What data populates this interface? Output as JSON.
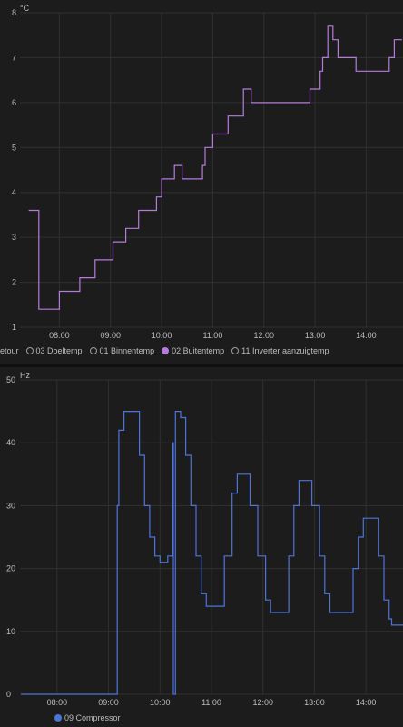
{
  "chart_data": [
    {
      "type": "line",
      "unit": "°C",
      "ylim": [
        1,
        8
      ],
      "y_ticks": [
        "1",
        "2",
        "3",
        "4",
        "5",
        "6",
        "7",
        "8"
      ],
      "x_tick_labels": [
        "08:00",
        "09:00",
        "10:00",
        "11:00",
        "12:00",
        "13:00",
        "14:00"
      ],
      "xlim_hours": [
        7.23,
        14.72
      ],
      "grid": true,
      "legend_position": "bottom-left",
      "legend": [
        {
          "label": "etour",
          "active": false
        },
        {
          "label": "03 Doeltemp",
          "active": false
        },
        {
          "label": "01 Binnentemp",
          "active": false
        },
        {
          "label": "02 Buitentemp",
          "active": true,
          "color": "#b57bdc"
        },
        {
          "label": "11 Inverter aanzuigtemp",
          "active": false
        }
      ],
      "series": [
        {
          "name": "02 Buitentemp",
          "color": "#b57bdc",
          "points": [
            [
              7.4,
              3.6
            ],
            [
              7.6,
              3.6
            ],
            [
              7.6,
              1.4
            ],
            [
              7.9,
              1.4
            ],
            [
              8.0,
              1.8
            ],
            [
              8.35,
              1.8
            ],
            [
              8.4,
              2.1
            ],
            [
              8.6,
              2.1
            ],
            [
              8.7,
              2.5
            ],
            [
              8.95,
              2.5
            ],
            [
              9.05,
              2.9
            ],
            [
              9.2,
              2.9
            ],
            [
              9.3,
              3.2
            ],
            [
              9.45,
              3.2
            ],
            [
              9.55,
              3.6
            ],
            [
              9.7,
              3.6
            ],
            [
              9.75,
              3.6
            ],
            [
              9.9,
              3.9
            ],
            [
              10.0,
              4.3
            ],
            [
              10.15,
              4.3
            ],
            [
              10.25,
              4.6
            ],
            [
              10.4,
              4.3
            ],
            [
              10.8,
              4.6
            ],
            [
              10.85,
              5.0
            ],
            [
              11.0,
              5.3
            ],
            [
              11.2,
              5.3
            ],
            [
              11.3,
              5.7
            ],
            [
              11.55,
              5.7
            ],
            [
              11.6,
              6.3
            ],
            [
              11.75,
              6.0
            ],
            [
              12.35,
              6.0
            ],
            [
              12.45,
              6.0
            ],
            [
              12.8,
              6.0
            ],
            [
              12.9,
              6.3
            ],
            [
              13.1,
              6.7
            ],
            [
              13.15,
              7.0
            ],
            [
              13.25,
              7.7
            ],
            [
              13.35,
              7.4
            ],
            [
              13.45,
              7.0
            ],
            [
              13.7,
              7.0
            ],
            [
              13.8,
              6.7
            ],
            [
              14.3,
              6.7
            ],
            [
              14.45,
              7.0
            ],
            [
              14.55,
              7.4
            ],
            [
              14.7,
              7.4
            ]
          ]
        }
      ]
    },
    {
      "type": "line",
      "unit": "Hz",
      "ylim": [
        0,
        50
      ],
      "y_ticks": [
        "0",
        "10",
        "20",
        "30",
        "40",
        "50"
      ],
      "x_tick_labels": [
        "08:00",
        "09:00",
        "10:00",
        "11:00",
        "12:00",
        "13:00",
        "14:00"
      ],
      "xlim_hours": [
        7.28,
        14.72
      ],
      "grid": true,
      "legend_position": "bottom-left",
      "legend": [
        {
          "label": "09 Compressor",
          "active": true,
          "color": "#4c74d9"
        }
      ],
      "series": [
        {
          "name": "09 Compressor",
          "color": "#4c74d9",
          "points": [
            [
              7.3,
              0
            ],
            [
              9.15,
              0
            ],
            [
              9.17,
              30
            ],
            [
              9.2,
              42
            ],
            [
              9.3,
              45
            ],
            [
              9.5,
              45
            ],
            [
              9.6,
              38
            ],
            [
              9.7,
              30
            ],
            [
              9.8,
              25
            ],
            [
              9.9,
              22
            ],
            [
              10.0,
              21
            ],
            [
              10.15,
              22
            ],
            [
              10.25,
              40
            ],
            [
              10.26,
              0
            ],
            [
              10.28,
              0
            ],
            [
              10.3,
              45
            ],
            [
              10.4,
              44
            ],
            [
              10.5,
              38
            ],
            [
              10.6,
              30
            ],
            [
              10.7,
              22
            ],
            [
              10.8,
              16
            ],
            [
              10.9,
              14
            ],
            [
              11.1,
              14
            ],
            [
              11.25,
              22
            ],
            [
              11.4,
              32
            ],
            [
              11.5,
              35
            ],
            [
              11.65,
              35
            ],
            [
              11.75,
              30
            ],
            [
              11.9,
              22
            ],
            [
              12.05,
              15
            ],
            [
              12.15,
              13
            ],
            [
              12.35,
              13
            ],
            [
              12.5,
              22
            ],
            [
              12.6,
              30
            ],
            [
              12.7,
              34
            ],
            [
              12.85,
              34
            ],
            [
              12.95,
              30
            ],
            [
              13.1,
              22
            ],
            [
              13.2,
              16
            ],
            [
              13.3,
              13
            ],
            [
              13.6,
              13
            ],
            [
              13.75,
              20
            ],
            [
              13.85,
              25
            ],
            [
              13.95,
              28
            ],
            [
              14.15,
              28
            ],
            [
              14.25,
              22
            ],
            [
              14.35,
              15
            ],
            [
              14.45,
              12
            ],
            [
              14.5,
              11
            ],
            [
              14.72,
              11
            ]
          ]
        }
      ]
    }
  ]
}
